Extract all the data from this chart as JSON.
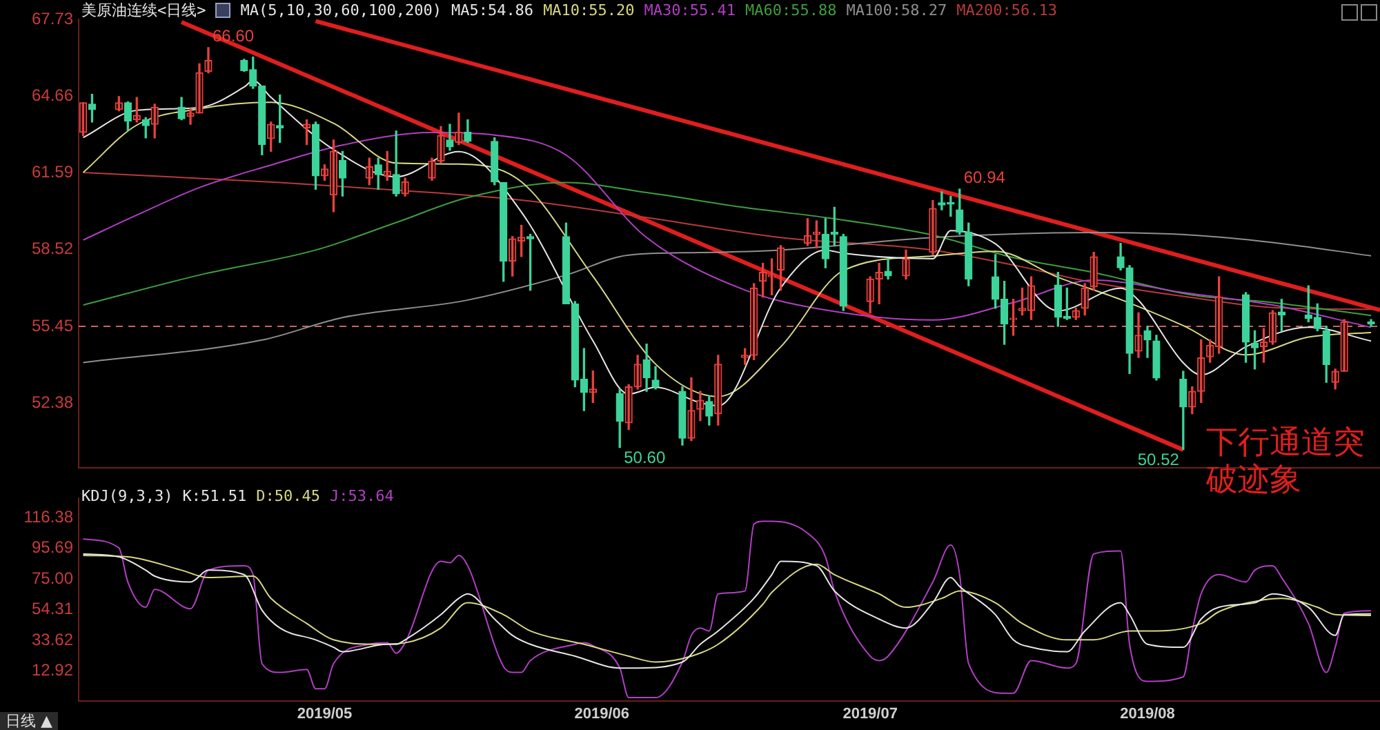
{
  "chart_data": [
    {
      "type": "candlestick",
      "title": "美原油连续<日线>",
      "subtitle": "MA(5,10,30,60,100,200)",
      "legend": "top left",
      "tick_labels": "y",
      "grid": false,
      "x": [
        "2019-04-04",
        "2019-04-05",
        "2019-04-08",
        "2019-04-09",
        "2019-04-10",
        "2019-04-11",
        "2019-04-12",
        "2019-04-15",
        "2019-04-16",
        "2019-04-17",
        "2019-04-18",
        "2019-04-22",
        "2019-04-23",
        "2019-04-24",
        "2019-04-25",
        "2019-04-26",
        "2019-04-29",
        "2019-04-30",
        "2019-05-01",
        "2019-05-02",
        "2019-05-03",
        "2019-05-06",
        "2019-05-07",
        "2019-05-08",
        "2019-05-09",
        "2019-05-10",
        "2019-05-13",
        "2019-05-14",
        "2019-05-15",
        "2019-05-16",
        "2019-05-17",
        "2019-05-20",
        "2019-05-21",
        "2019-05-22",
        "2019-05-23",
        "2019-05-24",
        "2019-05-28",
        "2019-05-29",
        "2019-05-30",
        "2019-05-31",
        "2019-06-03",
        "2019-06-04",
        "2019-06-05",
        "2019-06-06",
        "2019-06-07",
        "2019-06-10",
        "2019-06-11",
        "2019-06-12",
        "2019-06-13",
        "2019-06-14",
        "2019-06-17",
        "2019-06-18",
        "2019-06-19",
        "2019-06-20",
        "2019-06-21",
        "2019-06-24",
        "2019-06-25",
        "2019-06-26",
        "2019-06-27",
        "2019-06-28",
        "2019-07-01",
        "2019-07-02",
        "2019-07-03",
        "2019-07-05",
        "2019-07-08",
        "2019-07-09",
        "2019-07-10",
        "2019-07-11",
        "2019-07-12",
        "2019-07-15",
        "2019-07-16",
        "2019-07-17",
        "2019-07-18",
        "2019-07-19",
        "2019-07-22",
        "2019-07-23",
        "2019-07-24",
        "2019-07-25",
        "2019-07-26",
        "2019-07-29",
        "2019-07-30",
        "2019-07-31",
        "2019-08-01",
        "2019-08-02",
        "2019-08-05",
        "2019-08-06",
        "2019-08-07",
        "2019-08-08",
        "2019-08-09",
        "2019-08-12",
        "2019-08-13",
        "2019-08-14",
        "2019-08-15",
        "2019-08-16",
        "2019-08-19",
        "2019-08-20",
        "2019-08-21",
        "2019-08-22",
        "2019-08-23",
        "2019-08-26"
      ],
      "ohlc": [
        [
          63.21,
          64.39,
          63.08,
          64.39
        ],
        [
          64.34,
          64.73,
          63.62,
          64.12
        ],
        [
          64.12,
          64.64,
          64.07,
          64.39
        ],
        [
          64.39,
          64.43,
          63.3,
          63.66
        ],
        [
          63.71,
          64.61,
          63.62,
          63.89
        ],
        [
          63.71,
          63.8,
          62.99,
          63.48
        ],
        [
          63.53,
          64.34,
          62.99,
          64.21
        ],
        [
          64.21,
          64.61,
          63.71,
          63.75
        ],
        [
          63.85,
          64.16,
          63.53,
          63.98
        ],
        [
          63.98,
          65.95,
          63.98,
          65.59
        ],
        [
          65.65,
          66.6,
          65.59,
          66.08
        ],
        [
          66.08,
          66.13,
          65.65,
          65.68
        ],
        [
          65.72,
          66.22,
          64.97,
          65.06
        ],
        [
          65.06,
          65.06,
          62.31,
          62.72
        ],
        [
          62.96,
          63.62,
          62.45,
          63.53
        ],
        [
          63.48,
          64.7,
          62.81,
          63.39
        ],
        [
          63.39,
          63.71,
          62.72,
          63.53
        ],
        [
          63.53,
          63.62,
          60.93,
          61.47
        ],
        [
          61.47,
          61.91,
          61.29,
          61.74
        ],
        [
          60.7,
          62.9,
          60.03,
          62.45
        ],
        [
          62.09,
          62.45,
          60.66,
          61.38
        ],
        [
          61.38,
          62.18,
          61.11,
          61.83
        ],
        [
          61.91,
          62.18,
          60.93,
          61.52
        ],
        [
          61.47,
          62.45,
          61.29,
          61.65
        ],
        [
          61.52,
          63.26,
          60.66,
          60.75
        ],
        [
          60.75,
          61.38,
          60.66,
          61.23
        ],
        [
          61.38,
          62.18,
          61.29,
          62.06
        ],
        [
          62.06,
          63.44,
          62.0,
          63.08
        ],
        [
          62.9,
          63.53,
          62.49,
          62.63
        ],
        [
          62.81,
          63.98,
          62.72,
          63.21
        ],
        [
          63.21,
          63.71,
          62.81,
          62.85
        ],
        [
          62.85,
          62.99,
          61.11,
          61.23
        ],
        [
          61.2,
          61.2,
          57.25,
          58.06
        ],
        [
          58.06,
          59.04,
          57.46,
          58.95
        ],
        [
          58.86,
          59.49,
          58.24,
          59.01
        ],
        [
          59.04,
          59.13,
          56.89,
          58.95
        ],
        [
          59.04,
          59.58,
          56.35,
          56.35
        ],
        [
          56.35,
          56.44,
          53.03,
          53.3
        ],
        [
          53.33,
          54.56,
          52.08,
          52.8
        ],
        [
          52.8,
          53.66,
          52.4,
          52.94
        ],
        [
          52.76,
          52.94,
          50.6,
          51.65
        ],
        [
          51.59,
          53.12,
          51.32,
          53.03
        ],
        [
          53.03,
          54.29,
          52.94,
          53.93
        ],
        [
          54.11,
          54.74,
          52.85,
          53.39
        ],
        [
          53.3,
          53.84,
          52.94,
          53.03
        ],
        [
          52.85,
          53.03,
          50.7,
          50.97
        ],
        [
          50.97,
          53.39,
          50.88,
          52.08
        ],
        [
          52.13,
          52.85,
          51.68,
          52.49
        ],
        [
          52.44,
          52.67,
          51.5,
          51.86
        ],
        [
          51.95,
          54.29,
          51.5,
          53.93
        ],
        [
          54.2,
          54.56,
          53.93,
          54.29
        ],
        [
          54.29,
          57.16,
          54.11,
          56.98
        ],
        [
          57.25,
          57.97,
          56.62,
          57.61
        ],
        [
          57.43,
          58.15,
          56.71,
          57.47
        ],
        [
          57.7,
          58.68,
          56.89,
          58.59
        ],
        [
          58.77,
          59.76,
          58.68,
          59.08
        ],
        [
          59.13,
          59.67,
          58.59,
          59.22
        ],
        [
          59.13,
          59.76,
          57.79,
          58.15
        ],
        [
          59.22,
          60.21,
          58.68,
          59.13
        ],
        [
          59.04,
          59.13,
          56.08,
          56.26
        ],
        [
          56.44,
          57.43,
          55.99,
          57.34
        ],
        [
          57.34,
          57.97,
          56.35,
          57.61
        ],
        [
          57.65,
          58.15,
          57.34,
          57.47
        ],
        [
          57.47,
          58.5,
          57.34,
          58.15
        ],
        [
          58.41,
          60.48,
          58.32,
          60.16
        ],
        [
          60.39,
          60.83,
          60.11,
          60.3
        ],
        [
          60.34,
          60.65,
          59.85,
          60.34
        ],
        [
          60.11,
          60.94,
          59.13,
          59.22
        ],
        [
          59.22,
          59.58,
          57.07,
          57.34
        ],
        [
          57.43,
          58.32,
          56.17,
          56.53
        ],
        [
          56.53,
          57.25,
          54.73,
          55.54
        ],
        [
          55.72,
          56.53,
          55.09,
          55.77
        ],
        [
          56.08,
          56.98,
          55.9,
          56.17
        ],
        [
          56.08,
          57.43,
          55.72,
          57.07
        ],
        [
          57.1,
          57.61,
          55.45,
          55.81
        ],
        [
          55.84,
          56.98,
          55.72,
          55.77
        ],
        [
          55.81,
          56.17,
          55.72,
          56.08
        ],
        [
          56.17,
          57.16,
          55.9,
          56.98
        ],
        [
          57.03,
          58.41,
          56.89,
          58.23
        ],
        [
          58.23,
          58.77,
          57.7,
          57.79
        ],
        [
          57.79,
          57.88,
          53.56,
          54.37
        ],
        [
          54.46,
          55.99,
          54.2,
          55.09
        ],
        [
          55.27,
          55.45,
          54.2,
          54.91
        ],
        [
          54.86,
          55.09,
          53.3,
          53.38
        ],
        [
          53.33,
          53.65,
          50.52,
          52.22
        ],
        [
          52.22,
          53.03,
          51.95,
          52.85
        ],
        [
          52.85,
          54.91,
          52.4,
          54.19
        ],
        [
          54.23,
          54.91,
          54.01,
          54.69
        ],
        [
          54.64,
          57.43,
          54.37,
          56.62
        ],
        [
          56.71,
          56.8,
          54.01,
          54.82
        ],
        [
          54.77,
          55.27,
          53.74,
          54.59
        ],
        [
          54.64,
          55.36,
          54.01,
          54.82
        ],
        [
          54.82,
          56.08,
          54.73,
          55.99
        ],
        [
          56.02,
          56.53,
          55.27,
          55.9
        ],
        [
          55.9,
          57.07,
          55.63,
          55.77
        ],
        [
          55.81,
          56.35,
          55.27,
          55.36
        ],
        [
          55.27,
          55.45,
          53.21,
          53.92
        ],
        [
          53.21,
          53.74,
          52.94,
          53.65
        ],
        [
          53.65,
          55.72,
          53.65,
          55.63
        ],
        [
          55.63,
          55.72,
          55.45,
          55.54
        ]
      ],
      "colors": [
        "#e8413c",
        "#3dd39a",
        "#e8413c",
        "#3dd39a",
        "#e8413c",
        "#3dd39a",
        "#e8413c",
        "#3dd39a",
        "#e8413c",
        "#e8413c",
        "#e8413c",
        "#3dd39a",
        "#3dd39a",
        "#3dd39a",
        "#e8413c",
        "#3dd39a",
        "#e8413c",
        "#3dd39a",
        "#e8413c",
        "#e8413c",
        "#3dd39a",
        "#e8413c",
        "#3dd39a",
        "#e8413c",
        "#3dd39a",
        "#e8413c",
        "#e8413c",
        "#e8413c",
        "#3dd39a",
        "#e8413c",
        "#3dd39a",
        "#3dd39a",
        "#3dd39a",
        "#e8413c",
        "#e8413c",
        "#3dd39a",
        "#3dd39a",
        "#3dd39a",
        "#3dd39a",
        "#e8413c",
        "#3dd39a",
        "#e8413c",
        "#e8413c",
        "#3dd39a",
        "#3dd39a",
        "#3dd39a",
        "#e8413c",
        "#e8413c",
        "#3dd39a",
        "#e8413c",
        "#e8413c",
        "#e8413c",
        "#e8413c",
        "#e8413c",
        "#e8413c",
        "#e8413c",
        "#e8413c",
        "#3dd39a",
        "#3dd39a",
        "#3dd39a",
        "#e8413c",
        "#e8413c",
        "#3dd39a",
        "#e8413c",
        "#e8413c",
        "#3dd39a",
        "#3dd39a",
        "#3dd39a",
        "#3dd39a",
        "#3dd39a",
        "#3dd39a",
        "#e8413c",
        "#e8413c",
        "#e8413c",
        "#3dd39a",
        "#3dd39a",
        "#e8413c",
        "#e8413c",
        "#e8413c",
        "#3dd39a",
        "#3dd39a",
        "#e8413c",
        "#3dd39a",
        "#3dd39a",
        "#3dd39a",
        "#e8413c",
        "#e8413c",
        "#e8413c",
        "#e8413c",
        "#3dd39a",
        "#3dd39a",
        "#e8413c",
        "#e8413c",
        "#3dd39a",
        "#3dd39a",
        "#3dd39a",
        "#3dd39a",
        "#e8413c",
        "#e8413c",
        "#3dd39a"
      ],
      "series": [
        {
          "type": "line",
          "name": "MA5:54.86",
          "color": "#e6e6e6",
          "x": [
            "2019-04-04",
            "2019-04-10",
            "2019-04-17",
            "2019-04-22",
            "2019-04-23",
            "2019-04-25",
            "2019-05-02",
            "2019-05-09",
            "2019-05-16",
            "2019-05-23",
            "2019-05-31",
            "2019-06-04",
            "2019-06-07",
            "2019-06-12",
            "2019-06-14",
            "2019-06-21",
            "2019-06-26",
            "2019-06-28",
            "2019-07-08",
            "2019-07-10",
            "2019-07-15",
            "2019-07-22",
            "2019-07-29",
            "2019-07-31",
            "2019-08-05",
            "2019-08-07",
            "2019-08-12",
            "2019-08-19",
            "2019-08-26"
          ],
          "values": [
            63.0,
            64.09,
            64.2,
            65.02,
            65.28,
            64.61,
            62.52,
            61.43,
            62.44,
            60.02,
            54.87,
            52.74,
            53.01,
            52.39,
            52.27,
            56.99,
            58.5,
            58.37,
            58.15,
            59.28,
            58.75,
            56.07,
            56.97,
            56.49,
            53.99,
            53.51,
            54.63,
            55.41,
            54.86
          ]
        },
        {
          "type": "line",
          "name": "MA10:55.20",
          "color": "#d8d884",
          "x": [
            "2019-04-04",
            "2019-04-10",
            "2019-04-17",
            "2019-04-25",
            "2019-05-02",
            "2019-05-09",
            "2019-05-16",
            "2019-05-23",
            "2019-05-31",
            "2019-06-07",
            "2019-06-14",
            "2019-06-21",
            "2019-06-28",
            "2019-07-08",
            "2019-07-15",
            "2019-07-22",
            "2019-07-29",
            "2019-08-05",
            "2019-08-12",
            "2019-08-19",
            "2019-08-26"
          ],
          "values": [
            61.6,
            63.5,
            64.15,
            64.41,
            63.57,
            61.98,
            61.94,
            61.23,
            57.45,
            53.94,
            52.64,
            54.63,
            57.68,
            58.26,
            58.45,
            57.41,
            56.52,
            55.48,
            54.31,
            55.02,
            55.2
          ]
        },
        {
          "type": "line",
          "name": "MA30:55.41",
          "color": "#b13fc4",
          "x": [
            "2019-04-04",
            "2019-04-10",
            "2019-04-17",
            "2019-04-25",
            "2019-05-03",
            "2019-05-13",
            "2019-05-20",
            "2019-05-28",
            "2019-06-06",
            "2019-06-17",
            "2019-06-26",
            "2019-07-08",
            "2019-07-17",
            "2019-07-26",
            "2019-08-05",
            "2019-08-15",
            "2019-08-26"
          ],
          "values": [
            58.9,
            59.9,
            61.0,
            61.9,
            62.7,
            63.2,
            63.1,
            62.3,
            59.0,
            56.9,
            56.1,
            55.7,
            56.4,
            57.3,
            56.8,
            56.3,
            55.41
          ]
        },
        {
          "type": "line",
          "name": "MA60:55.88",
          "color": "#3e9e3e",
          "x": [
            "2019-04-04",
            "2019-04-17",
            "2019-04-30",
            "2019-05-09",
            "2019-05-17",
            "2019-05-28",
            "2019-06-06",
            "2019-06-17",
            "2019-06-26",
            "2019-07-08",
            "2019-07-17",
            "2019-07-26",
            "2019-08-06",
            "2019-08-15",
            "2019-08-26"
          ],
          "values": [
            56.3,
            57.5,
            58.5,
            59.6,
            60.6,
            61.2,
            60.8,
            60.2,
            59.8,
            59.1,
            58.2,
            57.6,
            56.7,
            56.4,
            55.88
          ]
        },
        {
          "type": "line",
          "name": "MA100:58.27",
          "color": "#8f8f8f",
          "x": [
            "2019-04-04",
            "2019-04-24",
            "2019-05-03",
            "2019-05-17",
            "2019-05-28",
            "2019-06-04",
            "2019-06-12",
            "2019-06-21",
            "2019-07-08",
            "2019-07-26",
            "2019-08-06",
            "2019-08-15",
            "2019-08-26"
          ],
          "values": [
            54.0,
            54.9,
            55.8,
            56.5,
            57.5,
            58.3,
            58.4,
            58.5,
            59.0,
            59.2,
            59.1,
            58.8,
            58.27
          ]
        },
        {
          "type": "line",
          "name": "MA200:56.13",
          "color": "#b83a3a",
          "x": [
            "2019-04-04",
            "2019-04-26",
            "2019-05-09",
            "2019-05-23",
            "2019-06-06",
            "2019-06-21",
            "2019-07-08",
            "2019-07-17",
            "2019-07-26",
            "2019-08-06",
            "2019-08-15",
            "2019-08-26"
          ],
          "values": [
            61.6,
            61.2,
            60.9,
            60.5,
            59.8,
            59.0,
            58.5,
            57.9,
            57.2,
            56.6,
            56.2,
            56.13
          ]
        },
        {
          "type": "line",
          "color": "#e01e1e",
          "x": [
            "2019-04-30",
            "2019-08-27"
          ],
          "values": [
            67.66,
            56.1
          ]
        },
        {
          "type": "line",
          "color": "#e01e1e",
          "x": [
            "2019-04-15",
            "2019-08-05"
          ],
          "values": [
            67.62,
            50.51
          ]
        }
      ],
      "xlim": [
        "2019-04-03T12:00",
        "2019-08-27"
      ],
      "ylim": [
        49.8,
        67.73
      ],
      "yticks": [
        67.73,
        64.66,
        61.59,
        58.52,
        55.45,
        52.38
      ],
      "ref_lines": [
        {
          "axis": "y",
          "value": 55.45,
          "color": "#c86464",
          "line_style": "dashed"
        }
      ],
      "annotations": [
        {
          "text": "66.60",
          "x": "2019-04-18",
          "y": 66.6
        },
        {
          "text": "60.94",
          "x": "2019-07-11",
          "y": 60.94
        },
        {
          "text": "50.60",
          "x": "2019-06-03",
          "y": 50.6
        },
        {
          "text": "50.52",
          "x": "2019-08-05",
          "y": 50.52
        },
        "下行通道突破迹象"
      ]
    },
    {
      "type": "line",
      "title": "KDJ(9,3,3)",
      "legend": "top left",
      "grid": false,
      "series": [
        {
          "name": "K:51.51",
          "color": "#e6e6e6",
          "x": [
            "2019-04-04",
            "2019-04-08",
            "2019-04-11",
            "2019-04-12",
            "2019-04-16",
            "2019-04-18",
            "2019-04-22",
            "2019-04-24",
            "2019-04-26",
            "2019-04-30",
            "2019-05-02",
            "2019-05-03",
            "2019-05-08",
            "2019-05-09",
            "2019-05-10",
            "2019-05-14",
            "2019-05-16",
            "2019-05-17",
            "2019-05-20",
            "2019-05-22",
            "2019-05-24",
            "2019-05-29",
            "2019-06-03",
            "2019-06-05",
            "2019-06-10",
            "2019-06-12",
            "2019-06-14",
            "2019-06-18",
            "2019-06-20",
            "2019-06-21",
            "2019-06-25",
            "2019-06-27",
            "2019-07-02",
            "2019-07-05",
            "2019-07-08",
            "2019-07-10",
            "2019-07-11",
            "2019-07-15",
            "2019-07-17",
            "2019-07-19",
            "2019-07-23",
            "2019-07-25",
            "2019-07-29",
            "2019-07-30",
            "2019-08-01",
            "2019-08-05",
            "2019-08-07",
            "2019-08-09",
            "2019-08-13",
            "2019-08-15",
            "2019-08-19",
            "2019-08-22",
            "2019-08-23",
            "2019-08-26"
          ],
          "values": [
            92,
            90,
            81,
            77,
            73,
            81,
            78,
            54,
            42,
            34,
            29,
            26,
            31,
            31,
            34,
            51,
            62,
            65,
            48,
            37,
            31,
            23,
            15,
            15,
            19,
            31,
            40,
            62,
            78,
            87,
            84,
            67,
            48,
            42,
            59,
            76,
            70,
            51,
            34,
            29,
            26,
            40,
            59,
            51,
            31,
            29,
            48,
            56,
            59,
            65,
            56,
            37,
            51,
            51.51
          ]
        },
        {
          "name": "D:50.45",
          "color": "#d8d884",
          "x": [
            "2019-04-04",
            "2019-04-09",
            "2019-04-15",
            "2019-04-18",
            "2019-04-23",
            "2019-04-25",
            "2019-04-29",
            "2019-05-02",
            "2019-05-07",
            "2019-05-10",
            "2019-05-14",
            "2019-05-17",
            "2019-05-21",
            "2019-05-24",
            "2019-05-30",
            "2019-06-04",
            "2019-06-07",
            "2019-06-11",
            "2019-06-14",
            "2019-06-19",
            "2019-06-20",
            "2019-06-25",
            "2019-06-27",
            "2019-07-02",
            "2019-07-05",
            "2019-07-09",
            "2019-07-11",
            "2019-07-15",
            "2019-07-18",
            "2019-07-23",
            "2019-07-26",
            "2019-07-30",
            "2019-08-02",
            "2019-08-07",
            "2019-08-09",
            "2019-08-14",
            "2019-08-16",
            "2019-08-20",
            "2019-08-22",
            "2019-08-26"
          ],
          "values": [
            91,
            90,
            81,
            76,
            77,
            62,
            45,
            34,
            31,
            32,
            42,
            59,
            51,
            40,
            31,
            23,
            19,
            23,
            31,
            58,
            66,
            85,
            78,
            65,
            56,
            62,
            67,
            59,
            45,
            34,
            34,
            40,
            40,
            45,
            53,
            61,
            62,
            56,
            51,
            50.45
          ]
        },
        {
          "name": "J:53.64",
          "color": "#b13fc4",
          "x": [
            "2019-04-04",
            "2019-04-08",
            "2019-04-09",
            "2019-04-11",
            "2019-04-12",
            "2019-04-16",
            "2019-04-18",
            "2019-04-22",
            "2019-04-23",
            "2019-04-24",
            "2019-04-26",
            "2019-04-29",
            "2019-04-30",
            "2019-05-01",
            "2019-05-02",
            "2019-05-06",
            "2019-05-08",
            "2019-05-09",
            "2019-05-10",
            "2019-05-14",
            "2019-05-15",
            "2019-05-16",
            "2019-05-17",
            "2019-05-21",
            "2019-05-22",
            "2019-05-23",
            "2019-05-24",
            "2019-05-29",
            "2019-05-30",
            "2019-05-31",
            "2019-06-03",
            "2019-06-04",
            "2019-06-07",
            "2019-06-10",
            "2019-06-11",
            "2019-06-12",
            "2019-06-13",
            "2019-06-14",
            "2019-06-17",
            "2019-06-18",
            "2019-06-19",
            "2019-06-20",
            "2019-06-24",
            "2019-06-26",
            "2019-06-27",
            "2019-07-01",
            "2019-07-02",
            "2019-07-03",
            "2019-07-08",
            "2019-07-10",
            "2019-07-11",
            "2019-07-12",
            "2019-07-16",
            "2019-07-17",
            "2019-07-19",
            "2019-07-23",
            "2019-07-24",
            "2019-07-26",
            "2019-07-29",
            "2019-07-30",
            "2019-08-01",
            "2019-08-05",
            "2019-08-06",
            "2019-08-07",
            "2019-08-09",
            "2019-08-12",
            "2019-08-13",
            "2019-08-15",
            "2019-08-16",
            "2019-08-19",
            "2019-08-21",
            "2019-08-22",
            "2019-08-23",
            "2019-08-26"
          ],
          "values": [
            102,
            96,
            73,
            56,
            68,
            55,
            81,
            84,
            78,
            18,
            12,
            14,
            1,
            1,
            18,
            31,
            32,
            25,
            32,
            87,
            86,
            91,
            84,
            16,
            12,
            12,
            20,
            31,
            32,
            30,
            15,
            -5,
            -5,
            19,
            37,
            42,
            40,
            65,
            67,
            112,
            114,
            114,
            106,
            90,
            67,
            23,
            20,
            23,
            73,
            98,
            78,
            18,
            -2,
            -2,
            20,
            15,
            18,
            92,
            94,
            31,
            6,
            9,
            40,
            65,
            78,
            73,
            81,
            84,
            76,
            45,
            12,
            29,
            52,
            53.64
          ]
        }
      ],
      "xlim": [
        "2019-04-03T12:00",
        "2019-08-27"
      ],
      "xticks": [
        {
          "value": "2019-05",
          "label": "2019/05"
        },
        {
          "value": "2019-06",
          "label": "2019/06"
        },
        {
          "value": "2019-07",
          "label": "2019/07"
        },
        {
          "value": "2019-08",
          "label": "2019/08"
        }
      ],
      "ylim": [
        -7.1,
        129.4
      ],
      "yticks": [
        116.38,
        95.69,
        {
          "value": 75,
          "label": "75.00"
        },
        54.31,
        33.62,
        12.92
      ],
      "annotations": [
        "日线 ▲"
      ]
    }
  ]
}
